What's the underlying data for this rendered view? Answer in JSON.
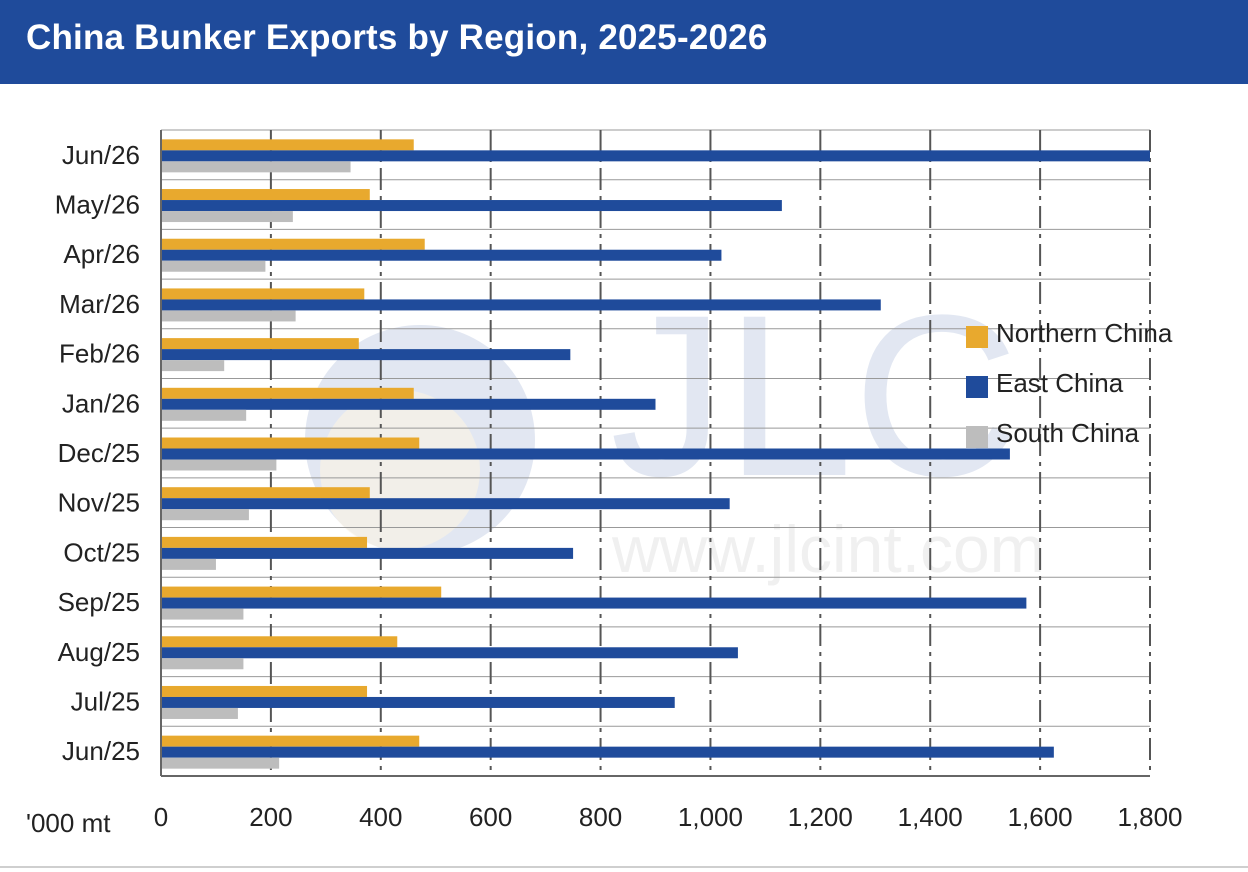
{
  "header": {
    "title": "China Bunker Exports by Region, 2025-2026"
  },
  "chart_data": {
    "type": "bar",
    "orientation": "horizontal",
    "categories": [
      "Jun/26",
      "May/26",
      "Apr/26",
      "Mar/26",
      "Feb/26",
      "Jan/26",
      "Dec/25",
      "Nov/25",
      "Oct/25",
      "Sep/25",
      "Aug/25",
      "Jul/25",
      "Jun/25"
    ],
    "series": [
      {
        "name": "Northern China",
        "color": "#e8a92e",
        "values": [
          460,
          380,
          480,
          370,
          360,
          460,
          470,
          380,
          375,
          510,
          430,
          375,
          470
        ]
      },
      {
        "name": "East China",
        "color": "#1f4b9b",
        "values": [
          1800,
          1130,
          1020,
          1310,
          745,
          900,
          1545,
          1035,
          750,
          1575,
          1050,
          935,
          1625
        ]
      },
      {
        "name": "South China",
        "color": "#bdbdbd",
        "values": [
          345,
          240,
          190,
          245,
          115,
          155,
          210,
          160,
          100,
          150,
          150,
          140,
          215
        ]
      }
    ],
    "xlim": [
      0,
      1800
    ],
    "xticks": [
      0,
      200,
      400,
      600,
      800,
      1000,
      1200,
      1400,
      1600,
      1800
    ],
    "xtick_labels": [
      "0",
      "200",
      "400",
      "600",
      "800",
      "1,000",
      "1,200",
      "1,400",
      "1,600",
      "1,800"
    ],
    "xlabel": "'000 mt",
    "ylabel": "",
    "grid": true,
    "legend_position": "right"
  },
  "watermark": {
    "text": "JLC",
    "url": "www.jlcint.com"
  }
}
